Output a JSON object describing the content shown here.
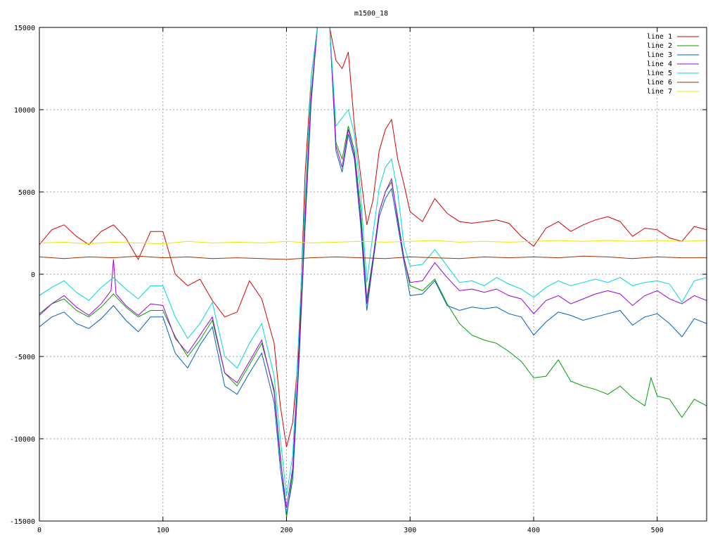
{
  "chart_data": {
    "type": "line",
    "title": "m1500_18",
    "xlabel": "",
    "ylabel": "",
    "xlim": [
      0,
      540
    ],
    "ylim": [
      -15000,
      15000
    ],
    "x_ticks": [
      0,
      100,
      200,
      300,
      400,
      500
    ],
    "y_ticks": [
      -15000,
      -10000,
      -5000,
      0,
      5000,
      10000,
      15000
    ],
    "grid": true,
    "legend_position": "top-right",
    "series": [
      {
        "name": "line 1",
        "color": "#d80000",
        "x": [
          0,
          10,
          20,
          30,
          40,
          50,
          60,
          70,
          80,
          90,
          100,
          110,
          120,
          130,
          140,
          150,
          160,
          170,
          180,
          190,
          195,
          200,
          205,
          210,
          215,
          220,
          225,
          230,
          235,
          240,
          245,
          250,
          255,
          260,
          265,
          270,
          275,
          280,
          285,
          290,
          295,
          300,
          310,
          320,
          330,
          340,
          350,
          360,
          370,
          380,
          390,
          400,
          410,
          420,
          430,
          440,
          450,
          460,
          470,
          480,
          490,
          500,
          510,
          520,
          530,
          540
        ],
        "y": [
          1800,
          2700,
          3000,
          2300,
          1800,
          2600,
          3000,
          2200,
          900,
          2600,
          2600,
          0,
          -700,
          -300,
          -1600,
          -2600,
          -2300,
          -400,
          -1500,
          -4200,
          -8000,
          -10500,
          -9000,
          -4500,
          6000,
          12000,
          15000,
          15000,
          15000,
          13000,
          12500,
          13500,
          9000,
          6000,
          3000,
          4500,
          7500,
          8800,
          9400,
          7000,
          5500,
          3800,
          3200,
          4600,
          3700,
          3200,
          3100,
          3200,
          3300,
          3100,
          2300,
          1700,
          2800,
          3200,
          2600,
          3000,
          3300,
          3500,
          3200,
          2300,
          2800,
          2700,
          2200,
          2000,
          2900,
          2700
        ]
      },
      {
        "name": "line 2",
        "color": "#00a000",
        "x": [
          0,
          10,
          20,
          30,
          40,
          50,
          60,
          70,
          80,
          90,
          100,
          110,
          120,
          130,
          140,
          150,
          160,
          170,
          180,
          190,
          195,
          200,
          205,
          210,
          215,
          220,
          225,
          230,
          235,
          240,
          245,
          250,
          255,
          260,
          265,
          270,
          275,
          280,
          285,
          290,
          295,
          300,
          310,
          320,
          330,
          340,
          350,
          360,
          370,
          380,
          390,
          400,
          410,
          420,
          430,
          440,
          450,
          460,
          470,
          480,
          490,
          495,
          500,
          510,
          520,
          530,
          540
        ],
        "y": [
          -2400,
          -1800,
          -1500,
          -2200,
          -2600,
          -2000,
          -1200,
          -2000,
          -2600,
          -2200,
          -2200,
          -3800,
          -5000,
          -4000,
          -2800,
          -6000,
          -6800,
          -5500,
          -4200,
          -7000,
          -11000,
          -14800,
          -12000,
          -5000,
          3500,
          11000,
          15000,
          15000,
          15000,
          8000,
          7000,
          9000,
          7500,
          4000,
          -1500,
          1000,
          3800,
          5000,
          5600,
          3500,
          1000,
          -700,
          -1000,
          -300,
          -1800,
          -3000,
          -3700,
          -4000,
          -4200,
          -4700,
          -5300,
          -6300,
          -6200,
          -5200,
          -6500,
          -6800,
          -7000,
          -7300,
          -6800,
          -7500,
          -8000,
          -6300,
          -7400,
          -7600,
          -8700,
          -7600,
          -8000
        ]
      },
      {
        "name": "line 3",
        "color": "#0060c0",
        "x": [
          0,
          10,
          20,
          30,
          40,
          50,
          60,
          70,
          80,
          90,
          100,
          110,
          120,
          130,
          140,
          150,
          160,
          170,
          180,
          190,
          195,
          200,
          205,
          210,
          215,
          220,
          225,
          230,
          235,
          240,
          245,
          250,
          255,
          260,
          265,
          270,
          275,
          280,
          285,
          290,
          295,
          300,
          310,
          320,
          330,
          340,
          350,
          360,
          370,
          380,
          390,
          400,
          410,
          420,
          430,
          440,
          450,
          460,
          470,
          480,
          490,
          500,
          510,
          520,
          530,
          540
        ],
        "y": [
          -3200,
          -2600,
          -2300,
          -3000,
          -3300,
          -2700,
          -1900,
          -2800,
          -3500,
          -2600,
          -2600,
          -4800,
          -5700,
          -4300,
          -3200,
          -6800,
          -7300,
          -6000,
          -4800,
          -7800,
          -11800,
          -14600,
          -12500,
          -5500,
          2800,
          10500,
          15000,
          15000,
          15000,
          7500,
          6200,
          8500,
          7000,
          3000,
          -2200,
          700,
          3500,
          4600,
          5200,
          3000,
          800,
          -1300,
          -1200,
          -400,
          -1900,
          -2200,
          -2000,
          -2100,
          -2000,
          -2400,
          -2600,
          -3700,
          -2900,
          -2300,
          -2500,
          -2800,
          -2600,
          -2400,
          -2200,
          -3100,
          -2600,
          -2400,
          -3000,
          -3800,
          -2700,
          -3000
        ]
      },
      {
        "name": "line 4",
        "color": "#a000d8",
        "x": [
          0,
          10,
          20,
          30,
          40,
          50,
          58,
          60,
          62,
          70,
          80,
          90,
          100,
          110,
          120,
          130,
          140,
          150,
          160,
          170,
          180,
          190,
          195,
          200,
          205,
          210,
          215,
          220,
          225,
          230,
          235,
          240,
          245,
          250,
          255,
          260,
          265,
          270,
          275,
          280,
          285,
          290,
          295,
          300,
          310,
          320,
          330,
          340,
          350,
          360,
          370,
          380,
          390,
          400,
          410,
          420,
          430,
          440,
          450,
          460,
          470,
          480,
          490,
          500,
          510,
          520,
          530,
          540
        ],
        "y": [
          -2500,
          -1800,
          -1300,
          -2000,
          -2500,
          -1800,
          -1000,
          900,
          -1200,
          -1900,
          -2500,
          -1800,
          -1900,
          -3900,
          -4800,
          -3700,
          -2600,
          -6000,
          -6600,
          -5300,
          -4000,
          -7200,
          -11200,
          -14200,
          -11800,
          -5000,
          3200,
          10800,
          15000,
          15000,
          15000,
          7800,
          6500,
          8800,
          7200,
          3400,
          -1800,
          900,
          3800,
          5000,
          5800,
          3300,
          1000,
          -500,
          -400,
          700,
          -200,
          -1000,
          -900,
          -1100,
          -900,
          -1300,
          -1500,
          -2400,
          -1600,
          -1300,
          -1800,
          -1500,
          -1200,
          -1000,
          -1200,
          -1900,
          -1300,
          -1000,
          -1500,
          -1800,
          -1300,
          -1600
        ]
      },
      {
        "name": "line 5",
        "color": "#00d8d8",
        "x": [
          0,
          10,
          20,
          30,
          40,
          50,
          60,
          70,
          80,
          90,
          100,
          110,
          120,
          130,
          140,
          150,
          160,
          170,
          180,
          190,
          195,
          200,
          205,
          210,
          215,
          220,
          225,
          230,
          235,
          240,
          245,
          250,
          255,
          260,
          265,
          270,
          275,
          280,
          285,
          290,
          295,
          300,
          310,
          320,
          330,
          340,
          350,
          360,
          370,
          380,
          390,
          400,
          410,
          420,
          430,
          440,
          450,
          460,
          470,
          480,
          490,
          500,
          510,
          520,
          530,
          540
        ],
        "y": [
          -1300,
          -800,
          -400,
          -1100,
          -1600,
          -800,
          -200,
          -900,
          -1500,
          -700,
          -700,
          -2600,
          -3900,
          -3000,
          -1700,
          -5000,
          -5700,
          -4200,
          -3000,
          -6200,
          -10000,
          -13500,
          -11000,
          -3500,
          4500,
          12000,
          15000,
          15000,
          15000,
          9000,
          9500,
          10000,
          8500,
          5000,
          -500,
          2500,
          5200,
          6500,
          7000,
          5000,
          1800,
          500,
          600,
          1500,
          500,
          -500,
          -400,
          -700,
          -200,
          -600,
          -900,
          -1400,
          -800,
          -400,
          -700,
          -500,
          -300,
          -500,
          -200,
          -700,
          -500,
          -400,
          -600,
          -1700,
          -400,
          -200
        ]
      },
      {
        "name": "line 6",
        "color": "#a03000",
        "x": [
          0,
          20,
          40,
          60,
          80,
          100,
          120,
          140,
          160,
          180,
          200,
          220,
          240,
          260,
          280,
          300,
          320,
          340,
          360,
          380,
          400,
          420,
          440,
          460,
          480,
          500,
          520,
          540
        ],
        "y": [
          1050,
          950,
          1050,
          1000,
          1100,
          1000,
          1050,
          950,
          1000,
          950,
          900,
          1000,
          1050,
          1000,
          950,
          1050,
          1000,
          950,
          1050,
          1000,
          1050,
          1000,
          1100,
          1050,
          950,
          1050,
          1000,
          1000
        ]
      },
      {
        "name": "line 7",
        "color": "#e8e800",
        "x": [
          0,
          20,
          40,
          60,
          80,
          100,
          120,
          140,
          160,
          180,
          200,
          220,
          240,
          260,
          280,
          300,
          320,
          340,
          360,
          380,
          400,
          420,
          440,
          460,
          480,
          500,
          520,
          540
        ],
        "y": [
          1900,
          1950,
          1850,
          1950,
          1900,
          1850,
          2000,
          1900,
          1950,
          1900,
          2000,
          1900,
          1950,
          2000,
          1950,
          2000,
          2050,
          1950,
          2000,
          1950,
          2000,
          2050,
          2000,
          2050,
          2000,
          2050,
          2000,
          2050
        ]
      }
    ]
  }
}
